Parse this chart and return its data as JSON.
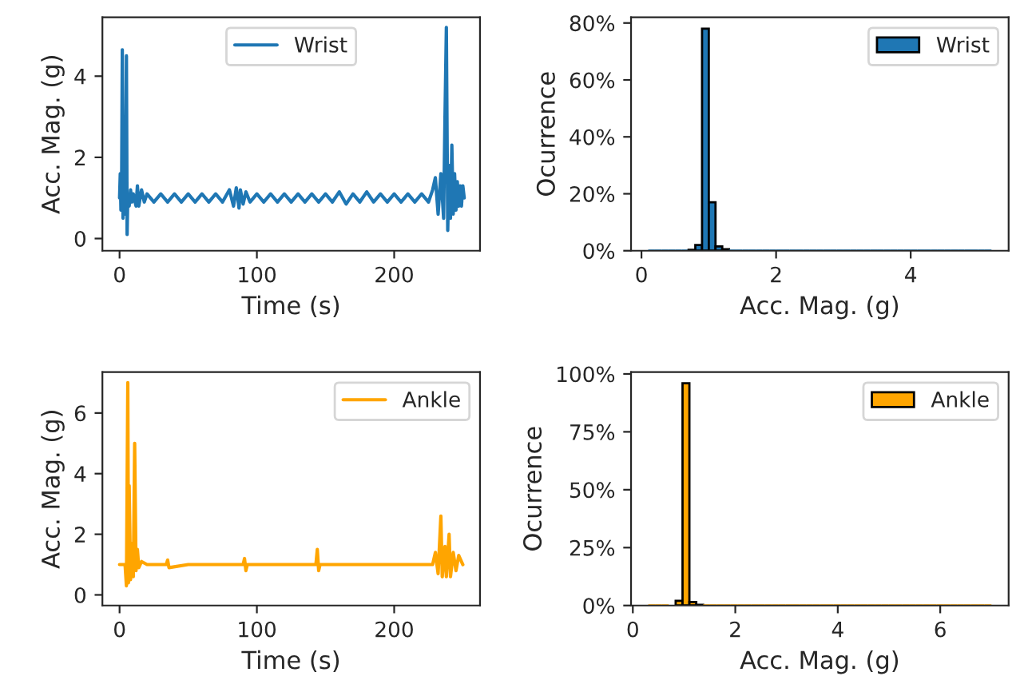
{
  "chart_data": [
    {
      "type": "line",
      "xlabel": "Time (s)",
      "ylabel": "Acc. Mag. (g)",
      "legend": "top center",
      "grid": false,
      "xlim": [
        -12.5,
        262.5
      ],
      "xticks": [
        0,
        100,
        200
      ],
      "ylim": [
        -0.3,
        5.45
      ],
      "yticks": [
        0,
        2,
        4
      ],
      "series": [
        {
          "name": "Wrist",
          "color": "#1f77b4",
          "x": [
            0,
            0.5,
            1,
            1.5,
            2,
            2.5,
            3,
            4,
            5,
            5.5,
            6,
            7,
            8,
            9,
            10,
            12,
            13,
            14,
            16,
            18,
            20,
            25,
            30,
            35,
            40,
            45,
            50,
            55,
            60,
            65,
            70,
            75,
            80,
            83,
            85,
            87,
            88,
            90,
            92,
            95,
            100,
            105,
            110,
            115,
            120,
            125,
            130,
            135,
            140,
            145,
            150,
            155,
            160,
            165,
            170,
            175,
            180,
            185,
            190,
            195,
            200,
            205,
            210,
            215,
            220,
            225,
            228,
            230,
            232,
            234,
            236,
            237,
            238,
            239,
            240,
            241,
            242,
            243,
            244,
            245,
            246,
            247,
            248,
            249,
            250,
            251
          ],
          "values": [
            1.0,
            1.6,
            0.7,
            1.3,
            4.65,
            0.5,
            1.2,
            0.6,
            4.5,
            0.1,
            1.1,
            0.8,
            1.2,
            0.9,
            1.1,
            0.8,
            1.3,
            0.8,
            1.2,
            0.9,
            1.1,
            0.9,
            1.1,
            0.9,
            1.1,
            0.9,
            1.1,
            0.9,
            1.1,
            0.9,
            1.1,
            0.9,
            1.2,
            0.8,
            1.25,
            0.75,
            1.2,
            0.85,
            1.15,
            0.9,
            1.1,
            0.9,
            1.1,
            0.9,
            1.1,
            0.9,
            1.1,
            0.9,
            1.1,
            0.9,
            1.1,
            0.9,
            1.15,
            0.85,
            1.1,
            0.9,
            1.15,
            0.9,
            1.1,
            0.9,
            1.1,
            0.9,
            1.1,
            0.9,
            1.1,
            0.9,
            1.2,
            1.5,
            0.6,
            1.6,
            0.5,
            3.0,
            5.2,
            0.2,
            1.8,
            0.5,
            2.3,
            0.6,
            1.6,
            0.7,
            1.4,
            0.8,
            1.3,
            0.8,
            1.3,
            1.0
          ]
        }
      ]
    },
    {
      "type": "histogram",
      "xlabel": "Acc. Mag. (g)",
      "ylabel": "Ocurrence",
      "legend": "top right",
      "grid": false,
      "xlim": [
        -0.155,
        5.455
      ],
      "xticks": [
        0,
        2,
        4
      ],
      "ylim": [
        0,
        82
      ],
      "yticks": [
        {
          "value": 0,
          "label": "0%"
        },
        {
          "value": 20,
          "label": "20%"
        },
        {
          "value": 40,
          "label": "40%"
        },
        {
          "value": 60,
          "label": "60%"
        },
        {
          "value": 80,
          "label": "80%"
        }
      ],
      "bins": [
        0.1,
        0.2,
        0.3,
        0.4,
        0.5,
        0.6,
        0.7,
        0.8,
        0.9,
        1.0,
        1.1,
        1.2,
        1.3,
        1.4,
        1.5,
        1.6,
        1.7,
        1.8,
        1.9,
        2.0,
        2.1,
        2.2,
        2.3,
        2.4,
        2.5,
        2.6,
        2.7,
        2.8,
        2.9,
        3.0,
        3.1,
        3.2,
        3.3,
        3.4,
        3.5,
        3.6,
        3.7,
        3.8,
        3.9,
        4.0,
        4.1,
        4.2,
        4.3,
        4.4,
        4.5,
        4.6,
        4.7,
        4.8,
        4.9,
        5.0,
        5.1,
        5.2
      ],
      "series": [
        {
          "name": "Wrist",
          "color": "#1f77b4",
          "values": [
            0,
            0,
            0,
            0,
            0,
            0,
            0.3,
            2,
            78,
            17,
            1.5,
            0.5,
            0,
            0,
            0,
            0,
            0,
            0,
            0,
            0,
            0,
            0,
            0,
            0,
            0,
            0,
            0,
            0,
            0,
            0,
            0,
            0,
            0,
            0,
            0,
            0,
            0,
            0,
            0,
            0,
            0,
            0,
            0,
            0,
            0,
            0,
            0,
            0,
            0,
            0,
            0
          ]
        }
      ]
    },
    {
      "type": "line",
      "xlabel": "Time (s)",
      "ylabel": "Acc. Mag. (g)",
      "legend": "top right",
      "grid": false,
      "xlim": [
        -12.5,
        262.5
      ],
      "xticks": [
        0,
        100,
        200
      ],
      "ylim": [
        -0.35,
        7.35
      ],
      "yticks": [
        0,
        2,
        4,
        6
      ],
      "series": [
        {
          "name": "Ankle",
          "color": "#ffa500",
          "x": [
            0,
            4,
            5,
            6,
            6.5,
            7,
            8,
            9,
            10,
            11,
            12,
            13,
            14,
            16,
            20,
            34,
            35,
            36,
            50,
            90,
            91,
            92,
            93,
            100,
            143,
            144,
            145,
            146,
            150,
            200,
            228,
            230,
            232,
            234,
            235,
            237,
            238,
            240,
            241,
            243,
            245,
            247,
            250
          ],
          "values": [
            1.0,
            1.0,
            0.3,
            7.0,
            0.4,
            3.6,
            0.5,
            1.7,
            0.6,
            5.0,
            0.8,
            1.5,
            0.9,
            1.1,
            1.0,
            1.0,
            1.15,
            0.9,
            1.0,
            1.0,
            1.2,
            0.8,
            1.0,
            1.0,
            1.0,
            1.5,
            0.8,
            1.0,
            1.0,
            1.0,
            1.0,
            1.4,
            0.7,
            2.6,
            0.6,
            1.6,
            0.6,
            2.0,
            0.6,
            1.4,
            0.8,
            1.3,
            1.0
          ]
        }
      ]
    },
    {
      "type": "histogram",
      "xlabel": "Acc. Mag. (g)",
      "ylabel": "Ocurrence",
      "legend": "top right",
      "grid": false,
      "xlim": [
        -0.035,
        7.335
      ],
      "xticks": [
        0,
        2,
        4,
        6
      ],
      "ylim": [
        0,
        100.8
      ],
      "yticks": [
        {
          "value": 0,
          "label": "0%"
        },
        {
          "value": 25,
          "label": "25%"
        },
        {
          "value": 50,
          "label": "50%"
        },
        {
          "value": 75,
          "label": "75%"
        },
        {
          "value": 100,
          "label": "100%"
        }
      ],
      "bins": [
        0.3,
        0.434,
        0.568,
        0.702,
        0.836,
        0.97,
        1.104,
        1.238,
        1.372,
        1.506,
        1.64,
        1.774,
        1.908,
        2.042,
        2.176,
        2.31,
        2.444,
        2.578,
        2.712,
        2.846,
        2.98,
        3.114,
        3.248,
        3.382,
        3.516,
        3.65,
        3.784,
        3.918,
        4.052,
        4.186,
        4.32,
        4.454,
        4.588,
        4.722,
        4.856,
        4.99,
        5.124,
        5.258,
        5.392,
        5.526,
        5.66,
        5.794,
        5.928,
        6.062,
        6.196,
        6.33,
        6.464,
        6.598,
        6.732,
        6.866,
        7.0
      ],
      "series": [
        {
          "name": "Ankle",
          "color": "#ffa500",
          "values": [
            0,
            0,
            0,
            null,
            2,
            96,
            1.5,
            0.3,
            0,
            0,
            0,
            0,
            0,
            0,
            0,
            0,
            0,
            0,
            0,
            0,
            0,
            0,
            0,
            0,
            0,
            0,
            0,
            0,
            0,
            0,
            0,
            0,
            0,
            0,
            0,
            0,
            0,
            0,
            0,
            0,
            0,
            0,
            0,
            0,
            0,
            0,
            0,
            0,
            0,
            0
          ]
        }
      ]
    }
  ]
}
